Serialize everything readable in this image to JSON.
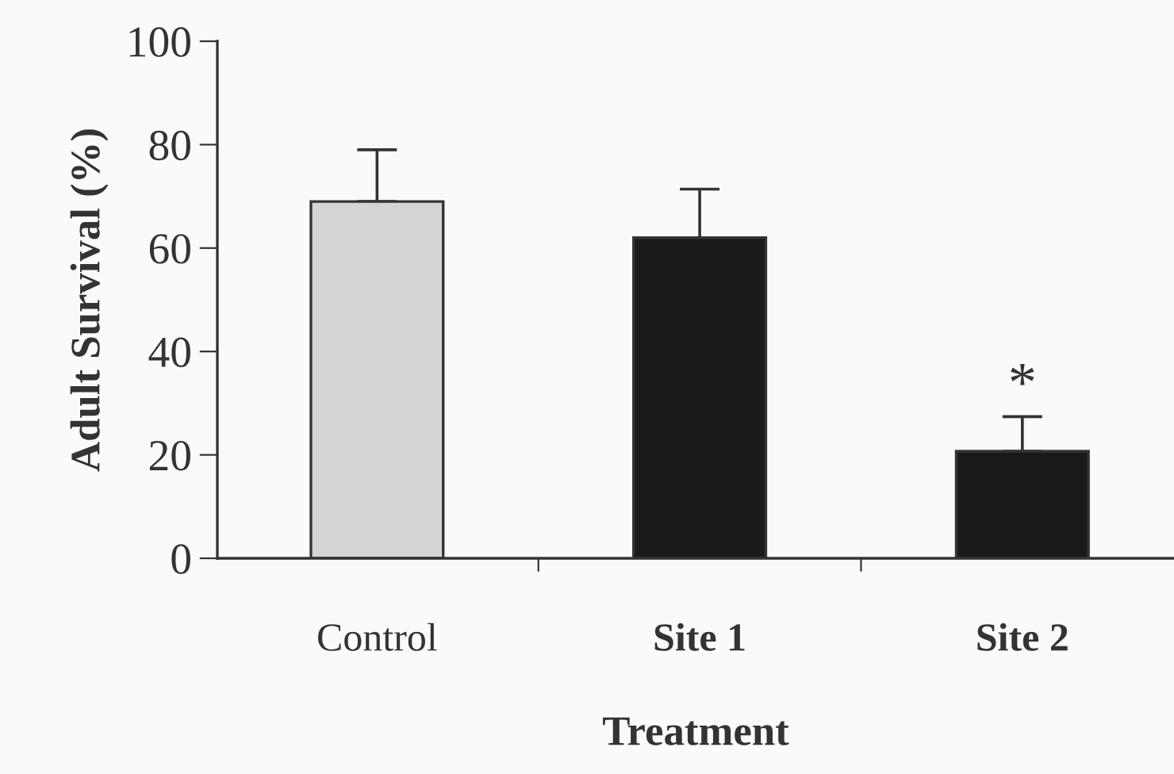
{
  "chart_data": {
    "type": "bar",
    "xlabel": "Treatment",
    "ylabel": "Adult Survival (%)",
    "categories": [
      "Control",
      "Site 1",
      "Site 2"
    ],
    "values": [
      69,
      62,
      20.7
    ],
    "errors": [
      [
        69,
        79
      ],
      [
        62,
        71.4
      ],
      [
        20.7,
        27.4
      ]
    ],
    "colors": [
      "#d4d4d4",
      "#1a1a1a",
      "#1a1a1a"
    ],
    "ylim": [
      0,
      100
    ],
    "yticks": [
      0,
      20,
      40,
      60,
      80,
      100
    ],
    "grid": false,
    "legend": false,
    "annotations": [
      "*"
    ]
  }
}
